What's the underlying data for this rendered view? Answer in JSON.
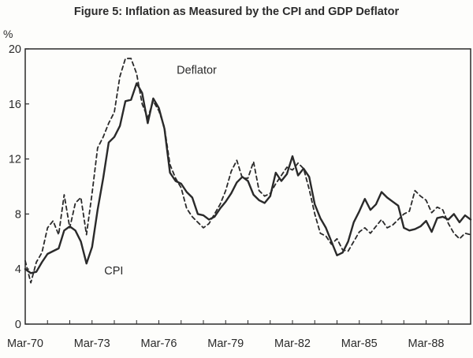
{
  "chart_data": {
    "type": "line",
    "title": "Figure 5: Inflation as Measured by the CPI and GDP Deflator",
    "ylabel": "%",
    "xlabel": "",
    "ylim": [
      0,
      20
    ],
    "yticks": [
      0,
      4,
      8,
      12,
      16,
      20
    ],
    "xlim": [
      1970.0,
      1990.0
    ],
    "xtick_labels": [
      "Mar-70",
      "Mar-73",
      "Mar-76",
      "Mar-79",
      "Mar-82",
      "Mar-85",
      "Mar-88"
    ],
    "xtick_values": [
      1970.0,
      1973.0,
      1976.0,
      1979.0,
      1982.0,
      1985.0,
      1988.0
    ],
    "grid": false,
    "series": [
      {
        "name": "CPI",
        "style": "solid",
        "color": "#2a2a2a",
        "x": [
          1970.0,
          1970.25,
          1970.5,
          1970.75,
          1971.0,
          1971.25,
          1971.5,
          1971.75,
          1972.0,
          1972.25,
          1972.5,
          1972.75,
          1973.0,
          1973.25,
          1973.5,
          1973.75,
          1974.0,
          1974.25,
          1974.5,
          1974.75,
          1975.0,
          1975.25,
          1975.5,
          1975.75,
          1976.0,
          1976.25,
          1976.5,
          1976.75,
          1977.0,
          1977.25,
          1977.5,
          1977.75,
          1978.0,
          1978.25,
          1978.5,
          1978.75,
          1979.0,
          1979.25,
          1979.5,
          1979.75,
          1980.0,
          1980.25,
          1980.5,
          1980.75,
          1981.0,
          1981.25,
          1981.5,
          1981.75,
          1982.0,
          1982.25,
          1982.5,
          1982.75,
          1983.0,
          1983.25,
          1983.5,
          1983.75,
          1984.0,
          1984.25,
          1984.5,
          1984.75,
          1985.0,
          1985.25,
          1985.5,
          1985.75,
          1986.0,
          1986.25,
          1986.5,
          1986.75,
          1987.0,
          1987.25,
          1987.5,
          1987.75,
          1988.0,
          1988.25,
          1988.5,
          1988.75,
          1989.0,
          1989.25,
          1989.5,
          1989.75,
          1990.0
        ],
        "values": [
          4.0,
          3.7,
          3.8,
          4.5,
          5.1,
          5.3,
          5.5,
          6.8,
          7.1,
          6.8,
          6.0,
          4.4,
          5.6,
          8.3,
          10.6,
          13.2,
          13.6,
          14.4,
          16.2,
          16.3,
          17.5,
          16.8,
          14.6,
          16.4,
          15.7,
          14.2,
          11.0,
          10.4,
          10.2,
          9.6,
          9.2,
          8.0,
          7.9,
          7.6,
          7.8,
          8.4,
          8.9,
          9.5,
          10.3,
          10.7,
          10.4,
          9.4,
          9.0,
          8.8,
          9.3,
          11.0,
          10.4,
          10.9,
          12.2,
          10.8,
          11.3,
          10.7,
          8.7,
          7.7,
          7.0,
          6.0,
          5.0,
          5.2,
          6.0,
          7.4,
          8.2,
          9.1,
          8.3,
          8.7,
          9.6,
          9.2,
          8.9,
          8.6,
          7.0,
          6.8,
          6.9,
          7.1,
          7.5,
          6.7,
          7.7,
          7.8,
          7.6,
          8.0,
          7.4,
          7.9,
          7.6
        ]
      },
      {
        "name": "Deflator",
        "style": "dashed",
        "color": "#2a2a2a",
        "x": [
          1970.0,
          1970.25,
          1970.5,
          1970.75,
          1971.0,
          1971.25,
          1971.5,
          1971.75,
          1972.0,
          1972.25,
          1972.5,
          1972.75,
          1973.0,
          1973.25,
          1973.5,
          1973.75,
          1974.0,
          1974.25,
          1974.5,
          1974.75,
          1975.0,
          1975.25,
          1975.5,
          1975.75,
          1976.0,
          1976.25,
          1976.5,
          1976.75,
          1977.0,
          1977.25,
          1977.5,
          1977.75,
          1978.0,
          1978.25,
          1978.5,
          1978.75,
          1979.0,
          1979.25,
          1979.5,
          1979.75,
          1980.0,
          1980.25,
          1980.5,
          1980.75,
          1981.0,
          1981.25,
          1981.5,
          1981.75,
          1982.0,
          1982.25,
          1982.5,
          1982.75,
          1983.0,
          1983.25,
          1983.5,
          1983.75,
          1984.0,
          1984.25,
          1984.5,
          1984.75,
          1985.0,
          1985.25,
          1985.5,
          1985.75,
          1986.0,
          1986.25,
          1986.5,
          1986.75,
          1987.0,
          1987.25,
          1987.5,
          1987.75,
          1988.0,
          1988.25,
          1988.5,
          1988.75,
          1989.0,
          1989.25,
          1989.5,
          1989.75,
          1990.0
        ],
        "values": [
          4.6,
          3.0,
          4.5,
          5.2,
          7.0,
          7.5,
          6.5,
          9.4,
          7.0,
          8.8,
          9.2,
          6.5,
          9.5,
          12.8,
          13.6,
          14.6,
          15.4,
          18.0,
          19.3,
          19.3,
          18.2,
          16.0,
          15.0,
          16.2,
          15.5,
          14.3,
          11.6,
          10.6,
          9.9,
          8.4,
          7.8,
          7.4,
          7.0,
          7.3,
          8.0,
          8.7,
          9.7,
          11.1,
          11.9,
          10.6,
          10.6,
          11.8,
          9.7,
          9.3,
          9.5,
          10.2,
          10.8,
          11.4,
          11.2,
          11.7,
          11.3,
          9.8,
          8.0,
          6.6,
          6.4,
          5.8,
          6.2,
          5.4,
          5.3,
          6.0,
          6.7,
          7.0,
          6.6,
          7.1,
          7.6,
          7.0,
          7.2,
          7.6,
          8.0,
          8.2,
          9.7,
          9.3,
          9.0,
          8.1,
          8.5,
          8.3,
          7.3,
          6.6,
          6.2,
          6.6,
          6.5
        ]
      }
    ],
    "annotations": [
      {
        "text": "Deflator",
        "x": 1976.8,
        "y": 18.2,
        "series": "Deflator"
      },
      {
        "text": "CPI",
        "x": 1973.55,
        "y": 3.6,
        "series": "CPI"
      }
    ]
  }
}
